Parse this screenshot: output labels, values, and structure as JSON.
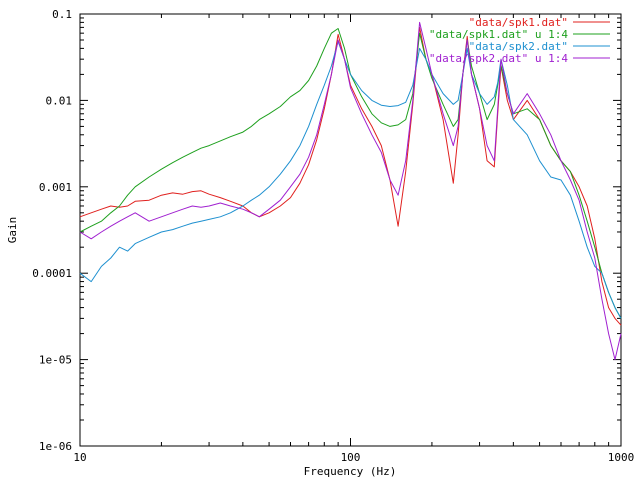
{
  "chart_data": {
    "type": "line",
    "title": "",
    "xlabel": "Frequency (Hz)",
    "ylabel": "Gain",
    "xscale": "log",
    "yscale": "log",
    "xlim": [
      10,
      1000
    ],
    "ylim": [
      1e-06,
      0.1
    ],
    "grid": false,
    "legend_position": "top-right",
    "x_tick_labels": [
      "10",
      "100",
      "1000"
    ],
    "y_tick_labels": [
      "1e-06",
      "1e-05",
      "0.0001",
      "0.001",
      "0.01",
      "0.1"
    ],
    "series": [
      {
        "name": "\"data/spk1.dat\"",
        "color": "#e0201e",
        "x": [
          10,
          11,
          12,
          13,
          14,
          15,
          16,
          18,
          20,
          22,
          24,
          26,
          28,
          30,
          33,
          36,
          40,
          43,
          46,
          50,
          55,
          60,
          65,
          70,
          75,
          80,
          85,
          90,
          95,
          100,
          110,
          120,
          130,
          140,
          150,
          160,
          170,
          180,
          190,
          200,
          220,
          240,
          250,
          260,
          270,
          280,
          300,
          320,
          340,
          350,
          360,
          380,
          400,
          450,
          500,
          550,
          600,
          650,
          700,
          750,
          800,
          850,
          900,
          950,
          1000
        ],
        "y": [
          0.00045,
          0.0005,
          0.00055,
          0.0006,
          0.00058,
          0.0006,
          0.00068,
          0.0007,
          0.0008,
          0.00085,
          0.00082,
          0.00088,
          0.0009,
          0.00082,
          0.00075,
          0.00068,
          0.0006,
          0.0005,
          0.00045,
          0.0005,
          0.0006,
          0.00075,
          0.0011,
          0.0018,
          0.0035,
          0.008,
          0.02,
          0.058,
          0.03,
          0.015,
          0.008,
          0.005,
          0.003,
          0.0012,
          0.00035,
          0.0015,
          0.009,
          0.07,
          0.03,
          0.02,
          0.006,
          0.0011,
          0.004,
          0.02,
          0.055,
          0.02,
          0.008,
          0.002,
          0.0017,
          0.007,
          0.025,
          0.01,
          0.006,
          0.01,
          0.006,
          0.003,
          0.002,
          0.0015,
          0.001,
          0.0006,
          0.00025,
          8e-05,
          4e-05,
          3e-05,
          2.5e-05
        ]
      },
      {
        "name": "\"data/spk1.dat\" u 1:4",
        "color": "#1ea01e",
        "x": [
          10,
          11,
          12,
          13,
          14,
          15,
          16,
          18,
          20,
          22,
          24,
          26,
          28,
          30,
          33,
          36,
          40,
          43,
          46,
          50,
          55,
          60,
          65,
          70,
          75,
          80,
          85,
          90,
          95,
          100,
          110,
          120,
          130,
          140,
          150,
          160,
          170,
          180,
          190,
          200,
          220,
          240,
          250,
          260,
          270,
          280,
          300,
          320,
          340,
          350,
          360,
          380,
          400,
          450,
          500,
          550,
          600,
          650,
          700,
          750,
          800,
          850,
          900,
          950,
          1000
        ],
        "y": [
          0.0003,
          0.00035,
          0.0004,
          0.0005,
          0.0006,
          0.0008,
          0.001,
          0.0013,
          0.0016,
          0.0019,
          0.0022,
          0.0025,
          0.0028,
          0.003,
          0.0034,
          0.0038,
          0.0043,
          0.005,
          0.006,
          0.007,
          0.0085,
          0.011,
          0.013,
          0.017,
          0.025,
          0.04,
          0.06,
          0.068,
          0.04,
          0.02,
          0.011,
          0.007,
          0.0055,
          0.005,
          0.0052,
          0.006,
          0.012,
          0.06,
          0.03,
          0.018,
          0.009,
          0.005,
          0.006,
          0.02,
          0.05,
          0.025,
          0.012,
          0.006,
          0.009,
          0.015,
          0.025,
          0.012,
          0.007,
          0.008,
          0.006,
          0.003,
          0.002,
          0.0015,
          0.0008,
          0.0004,
          0.0002,
          0.0001,
          6e-05,
          4e-05,
          3e-05
        ]
      },
      {
        "name": "\"data/spk2.dat\"",
        "color": "#1e90d0",
        "x": [
          10,
          11,
          12,
          13,
          14,
          15,
          16,
          18,
          20,
          22,
          24,
          26,
          28,
          30,
          33,
          36,
          40,
          43,
          46,
          50,
          55,
          60,
          65,
          70,
          75,
          80,
          85,
          90,
          95,
          100,
          110,
          120,
          130,
          140,
          150,
          160,
          170,
          180,
          190,
          200,
          220,
          240,
          250,
          260,
          270,
          280,
          300,
          320,
          340,
          350,
          360,
          380,
          400,
          450,
          500,
          550,
          600,
          650,
          700,
          750,
          800,
          850,
          900,
          950,
          1000
        ],
        "y": [
          0.0001,
          8e-05,
          0.00012,
          0.00015,
          0.0002,
          0.00018,
          0.00022,
          0.00026,
          0.0003,
          0.00032,
          0.00035,
          0.00038,
          0.0004,
          0.00042,
          0.00045,
          0.0005,
          0.0006,
          0.0007,
          0.0008,
          0.001,
          0.0014,
          0.002,
          0.003,
          0.005,
          0.009,
          0.015,
          0.025,
          0.048,
          0.03,
          0.02,
          0.013,
          0.01,
          0.0088,
          0.0085,
          0.0087,
          0.0095,
          0.015,
          0.04,
          0.03,
          0.02,
          0.012,
          0.009,
          0.01,
          0.02,
          0.04,
          0.02,
          0.012,
          0.009,
          0.011,
          0.016,
          0.03,
          0.015,
          0.006,
          0.004,
          0.002,
          0.0013,
          0.0012,
          0.0008,
          0.0004,
          0.0002,
          0.00012,
          0.0001,
          6e-05,
          4e-05,
          3e-05
        ]
      },
      {
        "name": "\"data/spk2.dat\" u 1:4",
        "color": "#a020d0",
        "x": [
          10,
          11,
          12,
          13,
          14,
          15,
          16,
          18,
          20,
          22,
          24,
          26,
          28,
          30,
          33,
          36,
          40,
          43,
          46,
          50,
          55,
          60,
          65,
          70,
          75,
          80,
          85,
          90,
          95,
          100,
          110,
          120,
          130,
          140,
          150,
          160,
          170,
          180,
          190,
          200,
          220,
          240,
          250,
          260,
          270,
          280,
          300,
          320,
          340,
          350,
          360,
          380,
          400,
          450,
          500,
          550,
          600,
          650,
          700,
          750,
          800,
          850,
          900,
          950,
          1000
        ],
        "y": [
          0.0003,
          0.00025,
          0.0003,
          0.00035,
          0.0004,
          0.00045,
          0.0005,
          0.0004,
          0.00045,
          0.0005,
          0.00055,
          0.0006,
          0.00058,
          0.0006,
          0.00065,
          0.0006,
          0.00055,
          0.0005,
          0.00045,
          0.00055,
          0.0007,
          0.001,
          0.0014,
          0.0022,
          0.004,
          0.009,
          0.02,
          0.05,
          0.03,
          0.014,
          0.007,
          0.004,
          0.0025,
          0.0012,
          0.0008,
          0.002,
          0.01,
          0.08,
          0.04,
          0.02,
          0.007,
          0.003,
          0.005,
          0.02,
          0.05,
          0.02,
          0.008,
          0.003,
          0.002,
          0.008,
          0.03,
          0.012,
          0.007,
          0.012,
          0.007,
          0.004,
          0.002,
          0.0012,
          0.0007,
          0.0003,
          0.00015,
          5e-05,
          2e-05,
          1e-05,
          2e-05
        ]
      }
    ]
  }
}
